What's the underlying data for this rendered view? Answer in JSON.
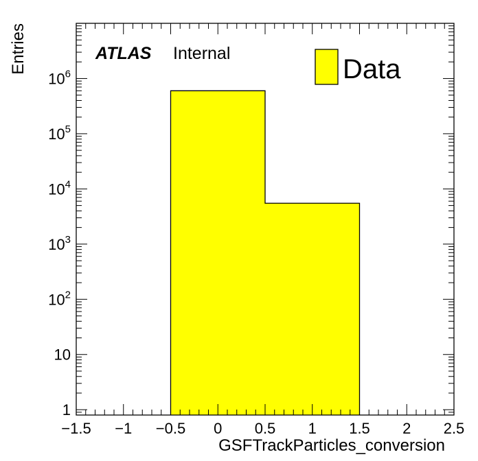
{
  "chart_data": {
    "type": "bar",
    "histogram": true,
    "bins": [
      {
        "low": -0.5,
        "high": 0.5,
        "value": 600000
      },
      {
        "low": 0.5,
        "high": 1.5,
        "value": 5500
      }
    ],
    "xlabel": "GSFTrackParticles_conversion",
    "ylabel": "Entries",
    "xlim": [
      -1.5,
      2.5
    ],
    "ylim": [
      0.8,
      10000000
    ],
    "yscale": "log",
    "x_ticks": [
      "−1.5",
      "−1",
      "−0.5",
      "0",
      "0.5",
      "1",
      "1.5",
      "2",
      "2.5"
    ],
    "y_ticks": [
      {
        "value": 1,
        "base": "1",
        "exp": ""
      },
      {
        "value": 10,
        "base": "10",
        "exp": ""
      },
      {
        "value": 100,
        "base": "10",
        "exp": "2"
      },
      {
        "value": 1000,
        "base": "10",
        "exp": "3"
      },
      {
        "value": 10000,
        "base": "10",
        "exp": "4"
      },
      {
        "value": 100000,
        "base": "10",
        "exp": "5"
      },
      {
        "value": 1000000,
        "base": "10",
        "exp": "6"
      }
    ],
    "series": [
      {
        "name": "Data",
        "color": "#ffff00"
      }
    ],
    "legend_position": "top-right",
    "grid": false
  },
  "labels": {
    "atlas": "ATLAS",
    "internal": "Internal"
  },
  "colors": {
    "fill": "#ffff00",
    "line": "#000000"
  }
}
